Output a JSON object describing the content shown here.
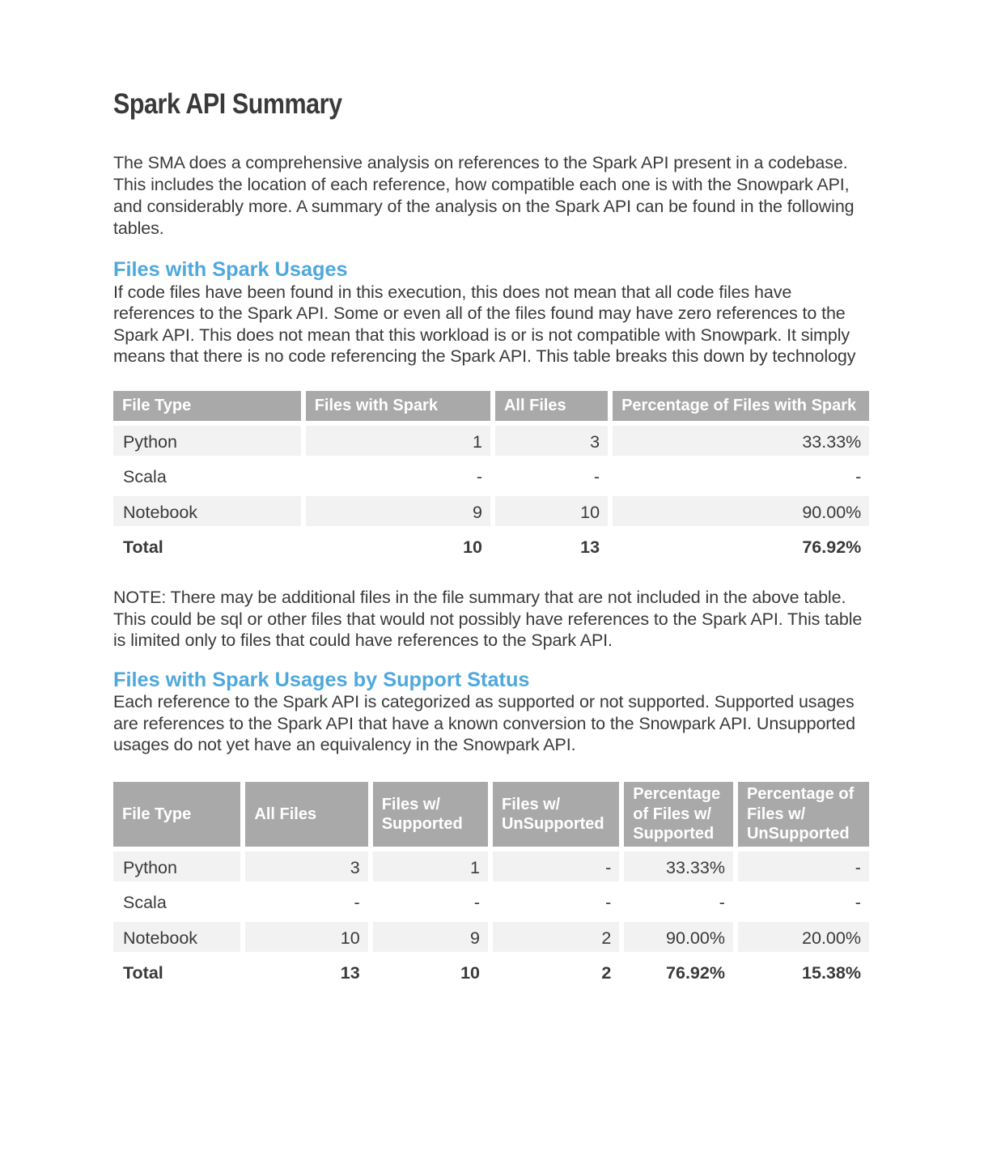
{
  "document": {
    "title": "Spark API Summary",
    "intro_lines": [
      "The SMA does a comprehensive analysis on references to the Spark API present in a codebase.",
      "This includes the location of each reference, how compatible each one is with the Snowpark API,",
      "and considerably more. A summary of the analysis on the Spark API can be found in the following",
      "tables."
    ]
  },
  "colors": {
    "accent_blue": "#4fa8dc",
    "table_header_bg": "#a9a9a9",
    "table_row_alt_bg": "#f2f2f2",
    "text": "#3a3a3a",
    "table_header_text": "#ffffff",
    "background": "#ffffff"
  },
  "sections": [
    {
      "heading": "Files with Spark Usages",
      "description_lines": [
        "If code files have been found in this execution, this does not mean that all code files have",
        "references to the Spark API. Some or even all of the files found may have zero references to the",
        "Spark API. This does not mean that this workload is or is not compatible with Snowpark. It simply",
        "means that there is no code referencing the Spark API. This table breaks this down by technology"
      ],
      "table": {
        "headers": [
          "File Type",
          "Files with Spark",
          "All Files",
          "Percentage of Files with Spark"
        ],
        "rows": [
          [
            "Python",
            "1",
            "3",
            "33.33%"
          ],
          [
            "Scala",
            "-",
            "-",
            "-"
          ],
          [
            "Notebook",
            "9",
            "10",
            "90.00%"
          ]
        ],
        "total_row": [
          "Total",
          "10",
          "13",
          "76.92%"
        ]
      },
      "note_lines": [
        "NOTE: There may be additional files in the file summary that are not included in the above table.",
        "This could be sql or other files that would not possibly have references to the Spark API. This table",
        "is limited only to files that could have references to the Spark API."
      ]
    },
    {
      "heading": "Files with Spark Usages by Support Status",
      "description_lines": [
        "Each reference to the Spark API is categorized as supported or not supported. Supported usages",
        "are references to the Spark API that have a known conversion to the Snowpark API. Unsupported",
        "usages do not yet have an equivalency in the Snowpark API."
      ],
      "table": {
        "headers": [
          "File Type",
          "All Files",
          "Files w/ Supported",
          "Files w/ UnSupported",
          "Percentage of Files w/ Supported",
          "Percentage of Files w/ UnSupported"
        ],
        "rows": [
          [
            "Python",
            "3",
            "1",
            "-",
            "33.33%",
            "-"
          ],
          [
            "Scala",
            "-",
            "-",
            "-",
            "-",
            "-"
          ],
          [
            "Notebook",
            "10",
            "9",
            "2",
            "90.00%",
            "20.00%"
          ]
        ],
        "total_row": [
          "Total",
          "13",
          "10",
          "2",
          "76.92%",
          "15.38%"
        ]
      }
    }
  ]
}
